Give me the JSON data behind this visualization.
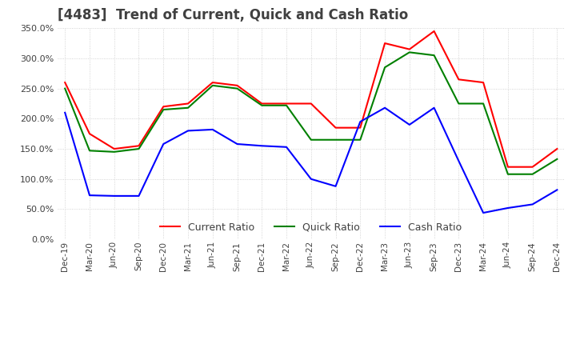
{
  "title": "[4483]  Trend of Current, Quick and Cash Ratio",
  "x_labels": [
    "Dec-19",
    "Mar-20",
    "Jun-20",
    "Sep-20",
    "Dec-20",
    "Mar-21",
    "Jun-21",
    "Sep-21",
    "Dec-21",
    "Mar-22",
    "Jun-22",
    "Sep-22",
    "Dec-22",
    "Mar-23",
    "Jun-23",
    "Sep-23",
    "Dec-23",
    "Mar-24",
    "Jun-24",
    "Sep-24",
    "Dec-24"
  ],
  "current_ratio": [
    260,
    175,
    150,
    155,
    220,
    225,
    260,
    255,
    225,
    225,
    225,
    185,
    185,
    325,
    315,
    345,
    265,
    260,
    120,
    120,
    150
  ],
  "quick_ratio": [
    250,
    147,
    145,
    150,
    215,
    218,
    255,
    250,
    222,
    222,
    165,
    165,
    165,
    285,
    310,
    305,
    225,
    225,
    108,
    108,
    133
  ],
  "cash_ratio": [
    210,
    73,
    72,
    72,
    158,
    180,
    182,
    158,
    155,
    153,
    100,
    88,
    195,
    218,
    190,
    218,
    130,
    44,
    52,
    58,
    82
  ],
  "ylim": [
    0,
    350
  ],
  "yticks": [
    0,
    50,
    100,
    150,
    200,
    250,
    300,
    350
  ],
  "colors": {
    "current": "#ff0000",
    "quick": "#008000",
    "cash": "#0000ff"
  },
  "background_color": "#ffffff",
  "grid_color": "#c8c8c8",
  "title_color": "#404040",
  "title_fontsize": 12
}
